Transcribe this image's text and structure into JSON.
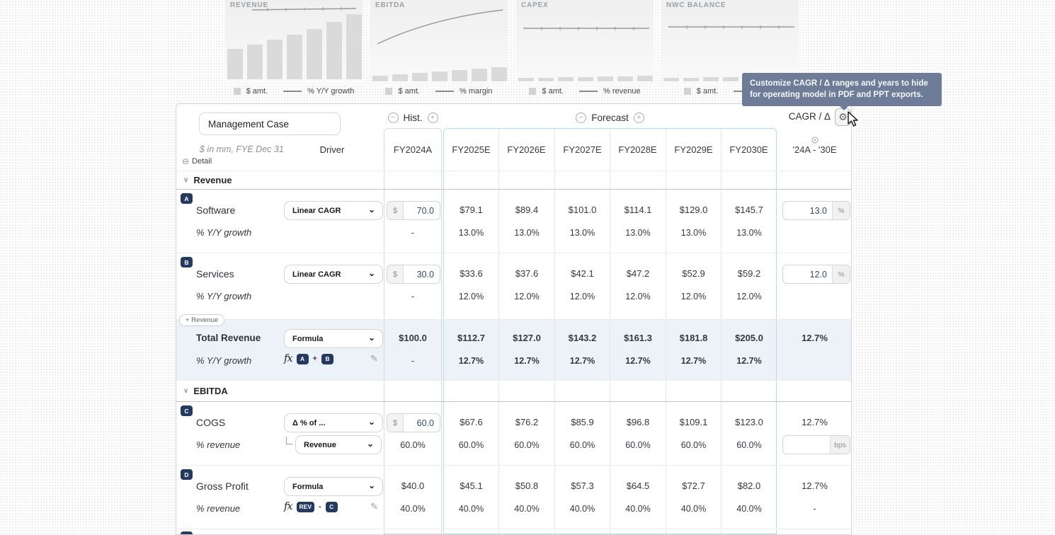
{
  "charts": [
    {
      "title": "REVENUE",
      "amt_label": "$ amt.",
      "pct_label": "% Y/Y growth"
    },
    {
      "title": "EBITDA",
      "amt_label": "$ amt.",
      "pct_label": "% margin"
    },
    {
      "title": "CAPEX",
      "amt_label": "$ amt.",
      "pct_label": "% revenue"
    },
    {
      "title": "NWC BALANCE",
      "amt_label": "$ amt.",
      "pct_label": ""
    }
  ],
  "tooltip": {
    "text": "Customize CAGR / Δ ranges and years to hide for operating model in PDF and PPT exports."
  },
  "header": {
    "case_name": "Management Case",
    "units_note": "$ in mm, FYE Dec 31",
    "driver_label": "Driver",
    "detail_label": "Detail",
    "hist_label": "Hist.",
    "forecast_label": "Forecast",
    "cagr_label": "CAGR / Δ",
    "cagr_range": "'24A - '30E"
  },
  "table": {
    "years": [
      "FY2024A",
      "FY2025E",
      "FY2026E",
      "FY2027E",
      "FY2028E",
      "FY2029E",
      "FY2030E"
    ],
    "add_revenue_label": "+ Revenue",
    "sections": {
      "revenue": {
        "label": "Revenue"
      },
      "ebitda": {
        "label": "EBITDA"
      }
    },
    "rows": [
      {
        "badge": "A",
        "label": "Software",
        "driver": "Linear CAGR",
        "hist_input": {
          "prefix": "$",
          "value": "70.0"
        },
        "values": [
          "$79.1",
          "$89.4",
          "$101.0",
          "$114.1",
          "$129.0",
          "$145.7"
        ],
        "sub_label": "% Y/Y growth",
        "sub_hist": "-",
        "sub_values": [
          "13.0%",
          "13.0%",
          "13.0%",
          "13.0%",
          "13.0%",
          "13.0%"
        ],
        "cagr_input": {
          "value": "13.0",
          "suffix": "%"
        }
      },
      {
        "badge": "B",
        "label": "Services",
        "driver": "Linear CAGR",
        "hist_input": {
          "prefix": "$",
          "value": "30.0"
        },
        "values": [
          "$33.6",
          "$37.6",
          "$42.1",
          "$47.2",
          "$52.9",
          "$59.2"
        ],
        "sub_label": "% Y/Y growth",
        "sub_hist": "-",
        "sub_values": [
          "12.0%",
          "12.0%",
          "12.0%",
          "12.0%",
          "12.0%",
          "12.0%"
        ],
        "cagr_input": {
          "value": "12.0",
          "suffix": "%"
        }
      },
      {
        "label": "Total Revenue",
        "driver": "Formula",
        "hist_value": "$100.0",
        "values": [
          "$112.7",
          "$127.0",
          "$143.2",
          "$161.3",
          "$181.8",
          "$205.0"
        ],
        "sub_label": "% Y/Y growth",
        "sub_hist": "-",
        "sub_values": [
          "12.7%",
          "12.7%",
          "12.7%",
          "12.7%",
          "12.7%",
          "12.7%"
        ],
        "cagr_value": "12.7%",
        "formula": [
          "A",
          "+",
          "B"
        ]
      },
      {
        "badge": "C",
        "label": "COGS",
        "driver": "Δ % of ...",
        "hist_input": {
          "prefix": "$",
          "value": "60.0"
        },
        "values": [
          "$67.6",
          "$76.2",
          "$85.9",
          "$96.8",
          "$109.1",
          "$123.0"
        ],
        "sub_label": "% revenue",
        "sub_driver": "Revenue",
        "sub_hist": "60.0%",
        "sub_values": [
          "60.0%",
          "60.0%",
          "60.0%",
          "60.0%",
          "60.0%",
          "60.0%"
        ],
        "cagr_value": "12.7%",
        "sub_cagr_input": {
          "value": "",
          "suffix": "bps"
        }
      },
      {
        "badge": "D",
        "label": "Gross Profit",
        "driver": "Formula",
        "hist_value": "$40.0",
        "values": [
          "$45.1",
          "$50.8",
          "$57.3",
          "$64.5",
          "$72.7",
          "$82.0"
        ],
        "sub_label": "% revenue",
        "sub_hist": "40.0%",
        "sub_values": [
          "40.0%",
          "40.0%",
          "40.0%",
          "40.0%",
          "40.0%",
          "40.0%"
        ],
        "cagr_value": "12.7%",
        "cagr_sub": "-",
        "formula": [
          "REV",
          "-",
          "C"
        ]
      }
    ]
  },
  "icons": {
    "gear": "⚙",
    "circle_minus": "−",
    "circle_plus": "+",
    "chevron_down": "⌄",
    "pencil": "✎",
    "section_chevron": "∨",
    "detail_minus": "⊖",
    "fx": "fx"
  },
  "colors": {
    "badge_navy": "#243a62",
    "tooltip_bg": "#6e7c98",
    "highlight_row": "#edf2f8",
    "forecast_border": "#b3dcee"
  }
}
